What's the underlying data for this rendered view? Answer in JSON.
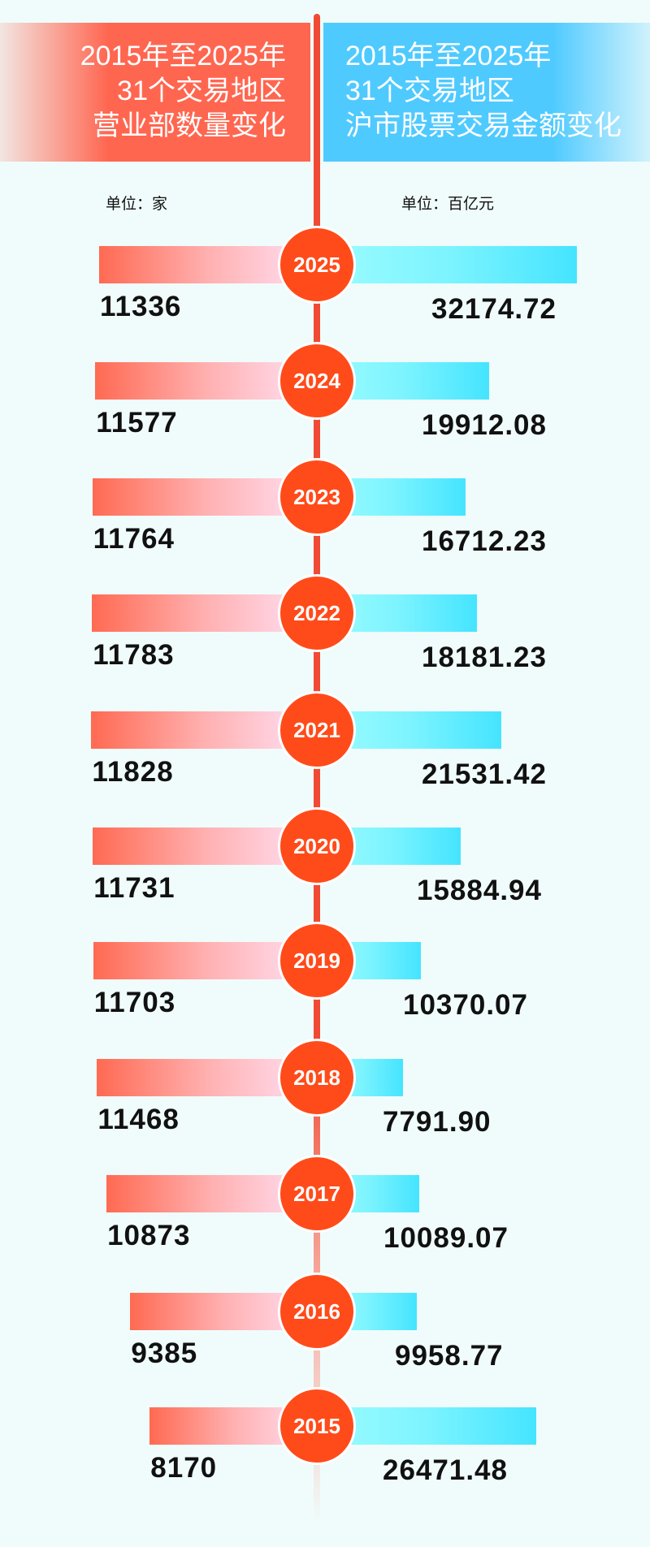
{
  "header": {
    "left": [
      "2015年至2025年",
      "31个交易地区",
      "营业部数量变化"
    ],
    "right": [
      "2015年至2025年",
      "31个交易地区",
      "沪市股票交易金额变化"
    ]
  },
  "units": {
    "left": "单位：家",
    "right": "单位：百亿元"
  },
  "colors": {
    "left_bar": "#ff6a52",
    "right_bar": "#45e4ff",
    "year_circle": "#ff4b1a",
    "background": "#f0fcfb"
  },
  "chart_data": {
    "type": "bar",
    "orientation": "diverging-horizontal",
    "categories": [
      "2025",
      "2024",
      "2023",
      "2022",
      "2021",
      "2020",
      "2019",
      "2018",
      "2017",
      "2016",
      "2015"
    ],
    "series": [
      {
        "name": "营业部数量变化",
        "unit": "家",
        "values": [
          11336,
          11577,
          11764,
          11783,
          11828,
          11731,
          11703,
          11468,
          10873,
          9385,
          8170
        ]
      },
      {
        "name": "沪市股票交易金额变化",
        "unit": "百亿元",
        "values": [
          "32174.72",
          "19912.08",
          "16712.23",
          "18181.23",
          "21531.42",
          "15884.94",
          "10370.07",
          "7791.90",
          "10089.07",
          "9958.77",
          "26471.48"
        ]
      }
    ]
  }
}
